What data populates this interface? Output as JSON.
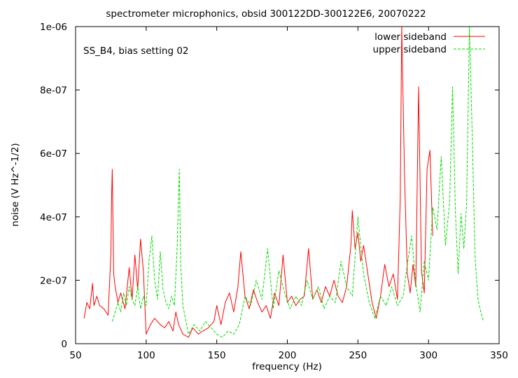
{
  "chart_data": {
    "type": "line",
    "title": "spectrometer microphonics, obsid 300122DD-300122E6, 20070222",
    "xlabel": "frequency (Hz)",
    "ylabel": "noise (V Hz^-1/2)",
    "annotation": "SS_B4, bias setting 02",
    "xlim": [
      50,
      350
    ],
    "ylim": [
      0,
      1e-06
    ],
    "xticks": [
      {
        "value": 50,
        "label": "50"
      },
      {
        "value": 100,
        "label": "100"
      },
      {
        "value": 150,
        "label": "150"
      },
      {
        "value": 200,
        "label": "200"
      },
      {
        "value": 250,
        "label": "250"
      },
      {
        "value": 300,
        "label": "300"
      },
      {
        "value": 350,
        "label": "350"
      }
    ],
    "yticks": [
      {
        "value": 0,
        "label": "0"
      },
      {
        "value": 2e-07,
        "label": "2e-07"
      },
      {
        "value": 4e-07,
        "label": "4e-07"
      },
      {
        "value": 6e-07,
        "label": "6e-07"
      },
      {
        "value": 8e-07,
        "label": "8e-07"
      },
      {
        "value": 1e-06,
        "label": "1e-06"
      }
    ],
    "legend_position": "top-right",
    "grid": false,
    "series": [
      {
        "name": "lower sideband",
        "color": "#ff0000",
        "dash": "solid",
        "x": [
          56,
          58,
          60,
          62,
          63,
          65,
          67,
          70,
          73,
          75,
          75.5,
          76,
          77,
          78,
          80,
          82,
          85,
          88,
          90,
          92,
          94,
          96,
          98,
          100,
          103,
          106,
          110,
          113,
          116,
          119,
          121,
          123,
          126,
          130,
          133,
          137,
          140,
          144,
          148,
          150,
          153,
          156,
          159,
          162,
          165,
          167,
          170,
          173,
          176,
          179,
          182,
          185,
          188,
          191,
          194,
          197,
          200,
          203,
          206,
          209,
          212,
          215,
          218,
          221,
          224,
          227,
          230,
          233,
          236,
          239,
          242,
          245,
          246,
          248,
          250,
          252,
          254,
          257,
          260,
          263,
          266,
          269,
          272,
          275,
          278,
          280,
          281,
          283,
          285,
          287,
          289,
          291,
          293,
          295,
          297,
          299,
          301,
          303
        ],
        "values": [
          8e-08,
          1.3e-07,
          1.1e-07,
          1.9e-07,
          1.2e-07,
          1.5e-07,
          1.2e-07,
          1.1e-07,
          9e-08,
          2.8e-07,
          4.6e-07,
          5.5e-07,
          2.2e-07,
          1.8e-07,
          1.3e-07,
          1.6e-07,
          1.1e-07,
          2.4e-07,
          1.4e-07,
          2.8e-07,
          1.7e-07,
          3.3e-07,
          2.3e-07,
          3e-08,
          6e-08,
          8e-08,
          6e-08,
          5e-08,
          7e-08,
          4e-08,
          1e-07,
          6e-08,
          3e-08,
          2e-08,
          5e-08,
          3e-08,
          4e-08,
          5e-08,
          7e-08,
          1.2e-07,
          6e-08,
          1.3e-07,
          1.6e-07,
          1e-07,
          1.8e-07,
          2.9e-07,
          1.5e-07,
          1.1e-07,
          1.7e-07,
          1.3e-07,
          1e-07,
          1.2e-07,
          8e-08,
          1.6e-07,
          1.2e-07,
          2.8e-07,
          1.3e-07,
          1.5e-07,
          1.2e-07,
          1.4e-07,
          1.5e-07,
          3e-07,
          1.4e-07,
          1.7e-07,
          1.3e-07,
          1.8e-07,
          1.5e-07,
          2e-07,
          1.5e-07,
          1.3e-07,
          1.8e-07,
          3.1e-07,
          4.2e-07,
          3e-07,
          3.5e-07,
          2.6e-07,
          3.1e-07,
          2.2e-07,
          1.3e-07,
          8e-08,
          1.5e-07,
          2.5e-07,
          1.8e-07,
          2.2e-07,
          1.4e-07,
          4.6e-07,
          1e-06,
          5.3e-07,
          2.2e-07,
          1.6e-07,
          2.5e-07,
          1.8e-07,
          8.1e-07,
          2.3e-07,
          1.6e-07,
          5.5e-07,
          6.1e-07,
          3.4e-07
        ]
      },
      {
        "name": "upper sideband",
        "color": "#00dd00",
        "dash": "dashed",
        "x": [
          76,
          78,
          80,
          82,
          84,
          86,
          88,
          90,
          92,
          94,
          96,
          98,
          100,
          102,
          104,
          106,
          108,
          110,
          112,
          114,
          116,
          118,
          120,
          122,
          123.5,
          124.5,
          126,
          130,
          134,
          138,
          142,
          146,
          150,
          154,
          158,
          162,
          166,
          170,
          174,
          178,
          182,
          186,
          190,
          194,
          198,
          202,
          206,
          210,
          214,
          218,
          222,
          226,
          230,
          234,
          238,
          242,
          246,
          250,
          254,
          258,
          262,
          266,
          270,
          274,
          278,
          282,
          285,
          288,
          291,
          294,
          297,
          300,
          303,
          306,
          309,
          312,
          315,
          317,
          319,
          321,
          323,
          325,
          327,
          329,
          331,
          333,
          335,
          337,
          339
        ],
        "values": [
          7e-08,
          1e-07,
          1.3e-07,
          1e-07,
          1.6e-07,
          1.2e-07,
          1.8e-07,
          1.4e-07,
          1.2e-07,
          1.8e-07,
          1.1e-07,
          1.5e-07,
          1.2e-07,
          2.6e-07,
          3.4e-07,
          2e-07,
          1.4e-07,
          2.9e-07,
          1.7e-07,
          1.3e-07,
          1.1e-07,
          1.5e-07,
          1.2e-07,
          3.1e-07,
          5.5e-07,
          2.5e-07,
          1.2e-07,
          3e-08,
          6e-08,
          4e-08,
          7e-08,
          5e-08,
          3e-08,
          2e-08,
          4e-08,
          3e-08,
          6e-08,
          1.5e-07,
          1.2e-07,
          2e-07,
          1.4e-07,
          3e-07,
          1.1e-07,
          2.3e-07,
          1.6e-07,
          1.1e-07,
          1.5e-07,
          1.2e-07,
          2e-07,
          1.4e-07,
          1.8e-07,
          1.1e-07,
          1.5e-07,
          1.3e-07,
          2.6e-07,
          1.8e-07,
          1.5e-07,
          4e-07,
          2.2e-07,
          1.3e-07,
          8e-08,
          1.5e-07,
          1.2e-07,
          1.8e-07,
          1.2e-07,
          1.5e-07,
          2.5e-07,
          3.4e-07,
          1.9e-07,
          1e-07,
          2.6e-07,
          2e-07,
          4.3e-07,
          3.6e-07,
          5.9e-07,
          3.1e-07,
          4.5e-07,
          8.1e-07,
          4.2e-07,
          2.2e-07,
          4.1e-07,
          3e-07,
          4.4e-07,
          1e-06,
          6.5e-07,
          2.7e-07,
          1.4e-07,
          1e-07,
          7e-08
        ]
      }
    ]
  }
}
